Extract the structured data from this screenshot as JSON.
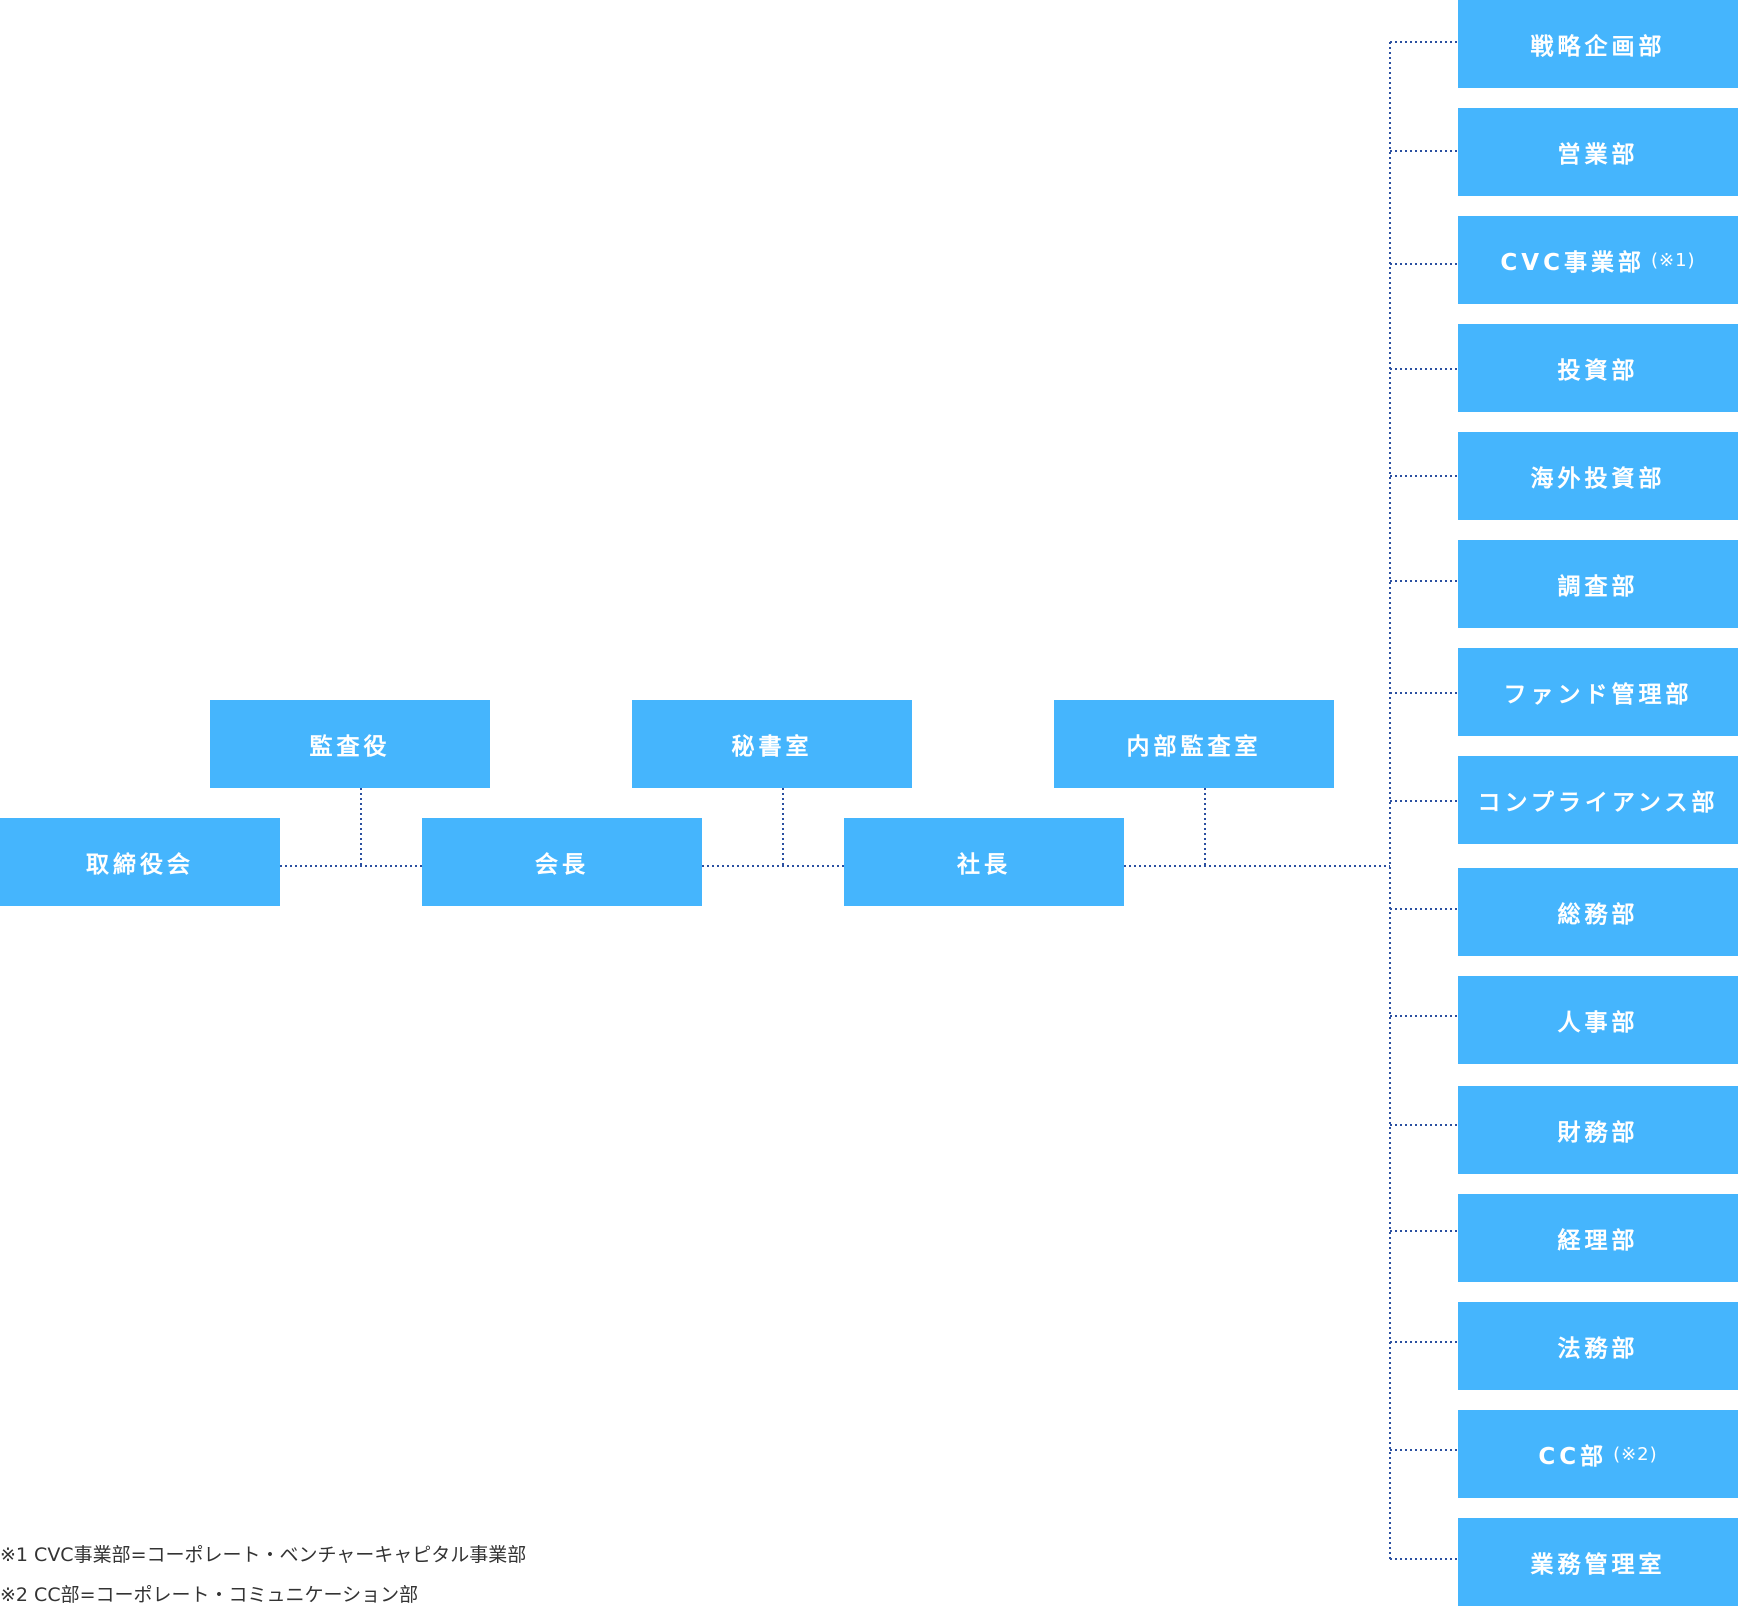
{
  "executives": {
    "board": "取締役会",
    "auditor": "監査役",
    "chairman": "会長",
    "secretariat": "秘書室",
    "president": "社長",
    "internal_audit": "内部監査室"
  },
  "departments": [
    {
      "label": "戦略企画部",
      "note": ""
    },
    {
      "label": "営業部",
      "note": ""
    },
    {
      "label": "CVC事業部",
      "note": "(※1)"
    },
    {
      "label": "投資部",
      "note": ""
    },
    {
      "label": "海外投資部",
      "note": ""
    },
    {
      "label": "調査部",
      "note": ""
    },
    {
      "label": "ファンド管理部",
      "note": ""
    },
    {
      "label": "コンプライアンス部",
      "note": ""
    },
    {
      "label": "総務部",
      "note": ""
    },
    {
      "label": "人事部",
      "note": ""
    },
    {
      "label": "財務部",
      "note": ""
    },
    {
      "label": "経理部",
      "note": ""
    },
    {
      "label": "法務部",
      "note": ""
    },
    {
      "label": "CC部",
      "note": "(※2)"
    },
    {
      "label": "業務管理室",
      "note": ""
    }
  ],
  "footnotes": [
    "※1 CVC事業部=コーポレート・ベンチャーキャピタル事業部",
    "※2 CC部=コーポレート・コミュニケーション部"
  ],
  "colors": {
    "box": "#45b5fd",
    "box_text": "#ffffff",
    "connector": "#2a4fa0",
    "footnote_text": "#333333"
  }
}
